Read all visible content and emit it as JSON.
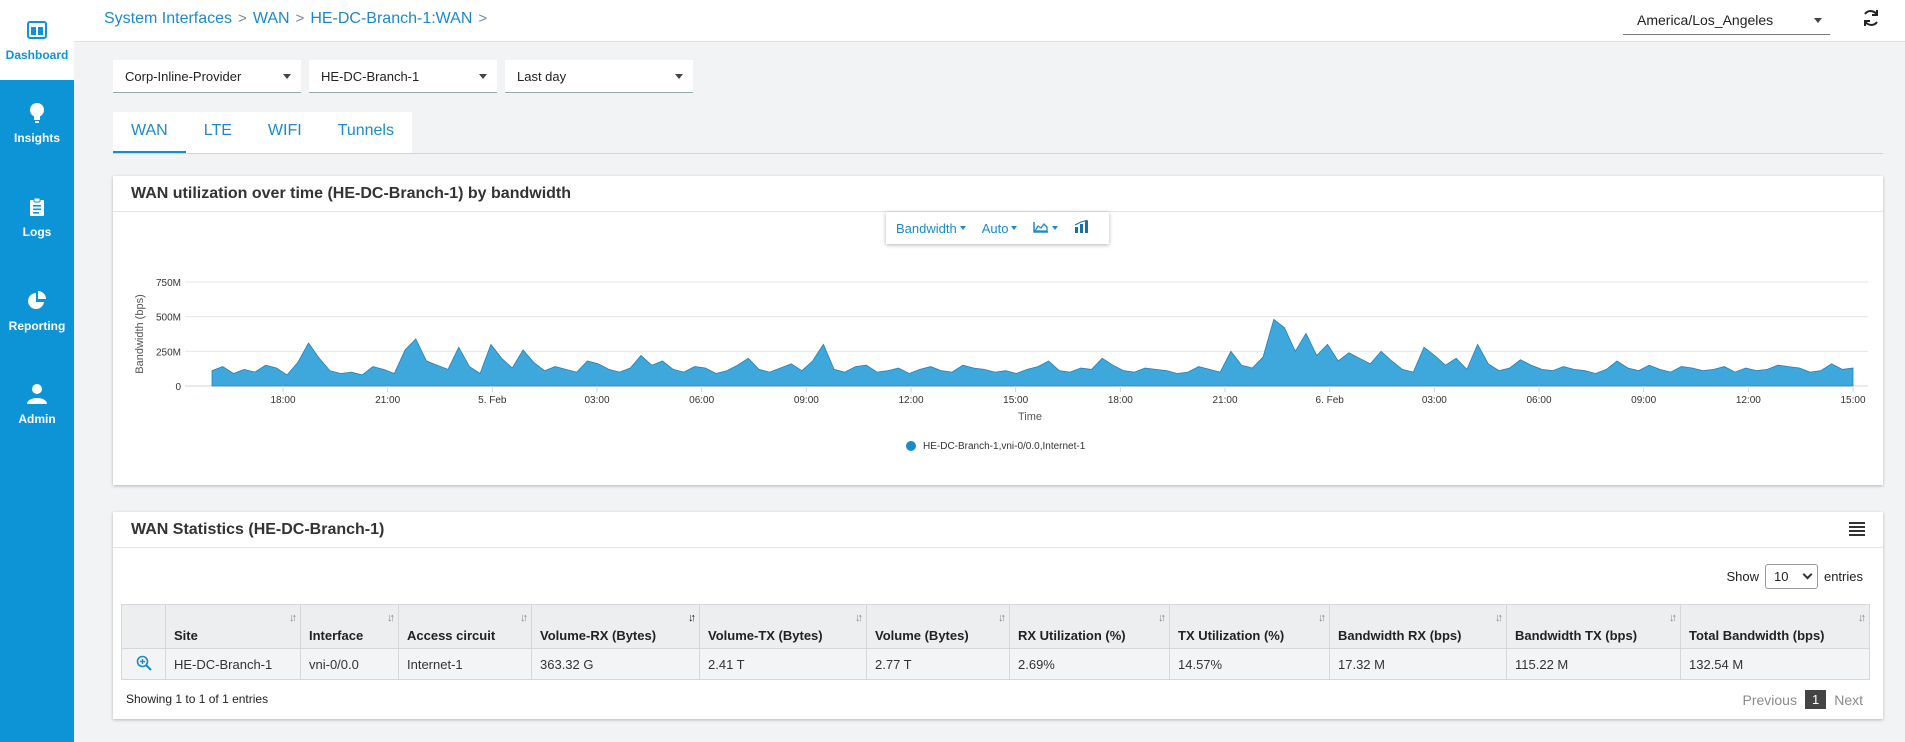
{
  "sidebar": {
    "items": [
      {
        "label": "Dashboard",
        "icon": "dashboard-icon",
        "active": true
      },
      {
        "label": "Insights",
        "icon": "lightbulb-icon",
        "active": false
      },
      {
        "label": "Logs",
        "icon": "clipboard-icon",
        "active": false
      },
      {
        "label": "Reporting",
        "icon": "pie-chart-icon",
        "active": false
      },
      {
        "label": "Admin",
        "icon": "user-icon",
        "active": false
      }
    ]
  },
  "header": {
    "breadcrumbs": [
      "System Interfaces",
      "WAN",
      "HE-DC-Branch-1:WAN"
    ],
    "breadcrumb_sep": ">",
    "timezone": "America/Los_Angeles"
  },
  "filters": {
    "provider": "Corp-Inline-Provider",
    "branch": "HE-DC-Branch-1",
    "range": "Last day"
  },
  "tabs": [
    "WAN",
    "LTE",
    "WIFI",
    "Tunnels"
  ],
  "chart_panel": {
    "title": "WAN utilization over time (HE-DC-Branch-1) by bandwidth",
    "toolbar": {
      "metric": "Bandwidth",
      "granularity": "Auto"
    }
  },
  "chart_data": {
    "type": "area",
    "title": "",
    "xlabel": "Time",
    "ylabel": "Bandwidth (bps)",
    "yticks": [
      "0",
      "250M",
      "500M",
      "750M"
    ],
    "ylim": [
      0,
      750
    ],
    "y_unit": "M bps",
    "xticks": [
      "18:00",
      "21:00",
      "5. Feb",
      "03:00",
      "06:00",
      "09:00",
      "12:00",
      "15:00",
      "18:00",
      "21:00",
      "6. Feb",
      "03:00",
      "06:00",
      "09:00",
      "12:00",
      "15:00"
    ],
    "series": [
      {
        "name": "HE-DC-Branch-1,vni-0/0.0,Internet-1",
        "color": "#3ea8dc",
        "x_start": "16:00",
        "x_end": "15:00",
        "values": [
          110,
          140,
          90,
          120,
          100,
          150,
          130,
          80,
          170,
          310,
          200,
          110,
          90,
          100,
          80,
          140,
          120,
          90,
          260,
          340,
          180,
          150,
          120,
          280,
          140,
          90,
          300,
          200,
          130,
          260,
          170,
          110,
          140,
          120,
          100,
          180,
          160,
          120,
          100,
          130,
          220,
          150,
          180,
          120,
          100,
          140,
          130,
          90,
          110,
          150,
          200,
          120,
          100,
          130,
          160,
          110,
          180,
          300,
          120,
          100,
          140,
          150,
          100,
          110,
          130,
          90,
          120,
          140,
          110,
          100,
          150,
          130,
          120,
          100,
          110,
          90,
          120,
          140,
          180,
          110,
          100,
          130,
          120,
          200,
          150,
          110,
          100,
          130,
          120,
          110,
          90,
          100,
          140,
          120,
          100,
          250,
          150,
          130,
          210,
          480,
          420,
          250,
          380,
          220,
          300,
          180,
          240,
          200,
          160,
          250,
          180,
          120,
          100,
          280,
          220,
          150,
          200,
          120,
          300,
          160,
          110,
          130,
          190,
          150,
          120,
          110,
          140,
          120,
          110,
          90,
          120,
          180,
          130,
          110,
          150,
          120,
          100,
          140,
          130,
          110,
          120,
          140,
          100,
          130,
          110,
          120,
          150,
          140,
          130,
          100,
          110,
          160,
          120,
          130
        ]
      }
    ],
    "legend_position": "bottom-center",
    "grid": true
  },
  "stats_panel": {
    "title": "WAN Statistics (HE-DC-Branch-1)",
    "show_label": "Show",
    "show_value": "10",
    "entries_label": "entries",
    "columns": [
      "",
      "Site",
      "Interface",
      "Access circuit",
      "Volume-RX (Bytes)",
      "Volume-TX (Bytes)",
      "Volume (Bytes)",
      "RX Utilization (%)",
      "TX Utilization (%)",
      "Bandwidth RX (bps)",
      "Bandwidth TX (bps)",
      "Total Bandwidth (bps)"
    ],
    "rows": [
      [
        "",
        "HE-DC-Branch-1",
        "vni-0/0.0",
        "Internet-1",
        "363.32 G",
        "2.41 T",
        "2.77 T",
        "2.69%",
        "14.57%",
        "17.32 M",
        "115.22 M",
        "132.54 M"
      ]
    ],
    "info": "Showing 1 to 1 of 1 entries",
    "pager": {
      "prev": "Previous",
      "current": "1",
      "next": "Next"
    }
  }
}
